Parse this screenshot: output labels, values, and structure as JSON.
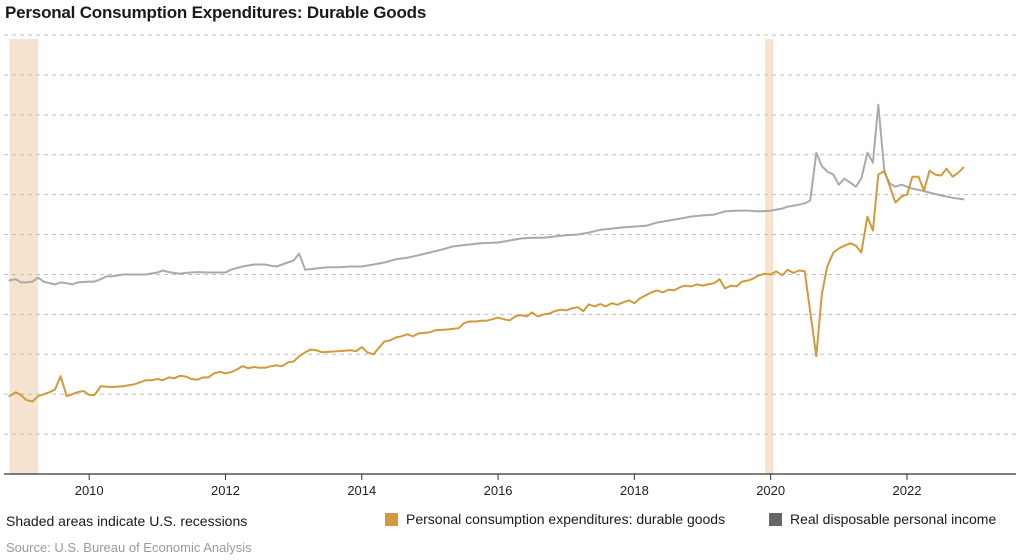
{
  "title": "Personal Consumption Expenditures: Durable Goods",
  "note": "Shaded areas indicate U.S. recessions",
  "source": "Source: U.S. Bureau of Economic Analysis",
  "colors": {
    "pce": "#d29a3c",
    "rdi": "#a9a9b1",
    "rdi_legend": "#666666",
    "recession": "#f5e3cf",
    "grid": "#bfbfbf",
    "axis": "#333333"
  },
  "chart_data": {
    "type": "line",
    "x_unit": "year",
    "xlim": [
      2008.75,
      2023.6
    ],
    "ylim": [
      0,
      11
    ],
    "y_tick_labels_shown": false,
    "grid": "horizontal dashed",
    "legend_position": "bottom",
    "x_ticks": [
      2010,
      2012,
      2014,
      2016,
      2018,
      2020,
      2022
    ],
    "x_tick_labels": [
      "2010",
      "2012",
      "2014",
      "2016",
      "2018",
      "2020",
      "2022"
    ],
    "recessions": [
      [
        2008.83,
        2009.25
      ],
      [
        2019.92,
        2020.04
      ]
    ],
    "series": [
      {
        "key": "pce",
        "name": "Personal consumption expenditures: durable goods",
        "points": [
          [
            2008.83,
            1.95
          ],
          [
            2008.92,
            2.05
          ],
          [
            2009.0,
            1.98
          ],
          [
            2009.08,
            1.85
          ],
          [
            2009.17,
            1.82
          ],
          [
            2009.25,
            1.95
          ],
          [
            2009.42,
            2.05
          ],
          [
            2009.5,
            2.12
          ],
          [
            2009.58,
            2.45
          ],
          [
            2009.67,
            1.95
          ],
          [
            2009.83,
            2.05
          ],
          [
            2009.92,
            2.08
          ],
          [
            2010.0,
            1.98
          ],
          [
            2010.08,
            1.98
          ],
          [
            2010.17,
            2.2
          ],
          [
            2010.33,
            2.18
          ],
          [
            2010.5,
            2.2
          ],
          [
            2010.67,
            2.25
          ],
          [
            2010.75,
            2.3
          ],
          [
            2010.83,
            2.35
          ],
          [
            2010.92,
            2.35
          ],
          [
            2011.0,
            2.38
          ],
          [
            2011.08,
            2.35
          ],
          [
            2011.17,
            2.42
          ],
          [
            2011.25,
            2.4
          ],
          [
            2011.33,
            2.46
          ],
          [
            2011.42,
            2.44
          ],
          [
            2011.5,
            2.38
          ],
          [
            2011.58,
            2.36
          ],
          [
            2011.67,
            2.42
          ],
          [
            2011.75,
            2.42
          ],
          [
            2011.83,
            2.52
          ],
          [
            2011.92,
            2.56
          ],
          [
            2012.0,
            2.52
          ],
          [
            2012.08,
            2.55
          ],
          [
            2012.17,
            2.62
          ],
          [
            2012.25,
            2.7
          ],
          [
            2012.33,
            2.65
          ],
          [
            2012.42,
            2.68
          ],
          [
            2012.5,
            2.66
          ],
          [
            2012.58,
            2.66
          ],
          [
            2012.67,
            2.7
          ],
          [
            2012.75,
            2.72
          ],
          [
            2012.83,
            2.7
          ],
          [
            2012.92,
            2.8
          ],
          [
            2013.0,
            2.82
          ],
          [
            2013.08,
            2.95
          ],
          [
            2013.17,
            3.05
          ],
          [
            2013.25,
            3.12
          ],
          [
            2013.33,
            3.1
          ],
          [
            2013.42,
            3.05
          ],
          [
            2013.5,
            3.06
          ],
          [
            2013.67,
            3.08
          ],
          [
            2013.83,
            3.1
          ],
          [
            2013.92,
            3.08
          ],
          [
            2014.0,
            3.18
          ],
          [
            2014.08,
            3.05
          ],
          [
            2014.17,
            3.0
          ],
          [
            2014.25,
            3.16
          ],
          [
            2014.33,
            3.32
          ],
          [
            2014.42,
            3.35
          ],
          [
            2014.5,
            3.42
          ],
          [
            2014.58,
            3.45
          ],
          [
            2014.67,
            3.5
          ],
          [
            2014.75,
            3.45
          ],
          [
            2014.83,
            3.52
          ],
          [
            2015.0,
            3.55
          ],
          [
            2015.08,
            3.6
          ],
          [
            2015.25,
            3.62
          ],
          [
            2015.42,
            3.65
          ],
          [
            2015.5,
            3.78
          ],
          [
            2015.58,
            3.82
          ],
          [
            2015.67,
            3.82
          ],
          [
            2015.75,
            3.84
          ],
          [
            2015.83,
            3.84
          ],
          [
            2015.92,
            3.88
          ],
          [
            2016.0,
            3.92
          ],
          [
            2016.08,
            3.88
          ],
          [
            2016.17,
            3.85
          ],
          [
            2016.25,
            3.95
          ],
          [
            2016.33,
            3.98
          ],
          [
            2016.42,
            3.95
          ],
          [
            2016.5,
            4.05
          ],
          [
            2016.58,
            3.95
          ],
          [
            2016.67,
            4.0
          ],
          [
            2016.75,
            4.02
          ],
          [
            2016.83,
            4.08
          ],
          [
            2016.92,
            4.12
          ],
          [
            2017.0,
            4.1
          ],
          [
            2017.08,
            4.15
          ],
          [
            2017.17,
            4.18
          ],
          [
            2017.25,
            4.08
          ],
          [
            2017.33,
            4.25
          ],
          [
            2017.42,
            4.2
          ],
          [
            2017.5,
            4.26
          ],
          [
            2017.58,
            4.2
          ],
          [
            2017.67,
            4.28
          ],
          [
            2017.75,
            4.24
          ],
          [
            2017.83,
            4.3
          ],
          [
            2017.92,
            4.35
          ],
          [
            2018.0,
            4.28
          ],
          [
            2018.08,
            4.4
          ],
          [
            2018.17,
            4.48
          ],
          [
            2018.25,
            4.55
          ],
          [
            2018.33,
            4.6
          ],
          [
            2018.42,
            4.55
          ],
          [
            2018.5,
            4.62
          ],
          [
            2018.58,
            4.6
          ],
          [
            2018.67,
            4.68
          ],
          [
            2018.75,
            4.72
          ],
          [
            2018.83,
            4.7
          ],
          [
            2018.92,
            4.75
          ],
          [
            2019.0,
            4.72
          ],
          [
            2019.08,
            4.75
          ],
          [
            2019.17,
            4.78
          ],
          [
            2019.25,
            4.88
          ],
          [
            2019.33,
            4.65
          ],
          [
            2019.42,
            4.72
          ],
          [
            2019.5,
            4.7
          ],
          [
            2019.58,
            4.82
          ],
          [
            2019.67,
            4.85
          ],
          [
            2019.75,
            4.9
          ],
          [
            2019.83,
            4.98
          ],
          [
            2019.92,
            5.02
          ],
          [
            2020.0,
            5.0
          ],
          [
            2020.08,
            5.08
          ],
          [
            2020.17,
            4.98
          ],
          [
            2020.25,
            5.12
          ],
          [
            2020.33,
            5.04
          ],
          [
            2020.42,
            5.1
          ],
          [
            2020.5,
            5.08
          ],
          [
            2020.67,
            2.95
          ],
          [
            2020.75,
            4.5
          ],
          [
            2020.83,
            5.2
          ],
          [
            2020.92,
            5.55
          ],
          [
            2021.0,
            5.65
          ],
          [
            2021.08,
            5.72
          ],
          [
            2021.17,
            5.78
          ],
          [
            2021.25,
            5.72
          ],
          [
            2021.33,
            5.55
          ],
          [
            2021.42,
            6.45
          ],
          [
            2021.5,
            6.1
          ],
          [
            2021.58,
            7.5
          ],
          [
            2021.67,
            7.6
          ],
          [
            2021.75,
            7.2
          ],
          [
            2021.83,
            6.8
          ],
          [
            2021.92,
            6.95
          ],
          [
            2022.0,
            7.0
          ],
          [
            2022.08,
            7.45
          ],
          [
            2022.17,
            7.45
          ],
          [
            2022.25,
            7.1
          ],
          [
            2022.33,
            7.6
          ],
          [
            2022.42,
            7.5
          ],
          [
            2022.5,
            7.48
          ],
          [
            2022.58,
            7.65
          ],
          [
            2022.67,
            7.45
          ],
          [
            2022.75,
            7.55
          ],
          [
            2022.83,
            7.68
          ]
        ]
      },
      {
        "key": "rdi",
        "name": "Real disposable personal income",
        "points": [
          [
            2008.83,
            4.85
          ],
          [
            2008.92,
            4.88
          ],
          [
            2009.0,
            4.8
          ],
          [
            2009.08,
            4.8
          ],
          [
            2009.17,
            4.82
          ],
          [
            2009.25,
            4.92
          ],
          [
            2009.33,
            4.82
          ],
          [
            2009.42,
            4.78
          ],
          [
            2009.5,
            4.75
          ],
          [
            2009.58,
            4.8
          ],
          [
            2009.67,
            4.78
          ],
          [
            2009.75,
            4.75
          ],
          [
            2009.83,
            4.8
          ],
          [
            2010.0,
            4.82
          ],
          [
            2010.08,
            4.82
          ],
          [
            2010.17,
            4.88
          ],
          [
            2010.25,
            4.95
          ],
          [
            2010.33,
            4.95
          ],
          [
            2010.5,
            5.0
          ],
          [
            2010.67,
            5.0
          ],
          [
            2010.83,
            5.0
          ],
          [
            2011.0,
            5.05
          ],
          [
            2011.08,
            5.1
          ],
          [
            2011.17,
            5.06
          ],
          [
            2011.33,
            5.02
          ],
          [
            2011.42,
            5.04
          ],
          [
            2011.58,
            5.06
          ],
          [
            2011.75,
            5.05
          ],
          [
            2012.0,
            5.05
          ],
          [
            2012.08,
            5.12
          ],
          [
            2012.25,
            5.2
          ],
          [
            2012.42,
            5.25
          ],
          [
            2012.58,
            5.25
          ],
          [
            2012.67,
            5.22
          ],
          [
            2012.75,
            5.2
          ],
          [
            2012.83,
            5.25
          ],
          [
            2013.0,
            5.35
          ],
          [
            2013.08,
            5.52
          ],
          [
            2013.17,
            5.12
          ],
          [
            2013.33,
            5.15
          ],
          [
            2013.5,
            5.18
          ],
          [
            2013.67,
            5.18
          ],
          [
            2013.83,
            5.2
          ],
          [
            2014.0,
            5.2
          ],
          [
            2014.17,
            5.25
          ],
          [
            2014.33,
            5.3
          ],
          [
            2014.5,
            5.38
          ],
          [
            2014.67,
            5.42
          ],
          [
            2014.83,
            5.48
          ],
          [
            2015.0,
            5.55
          ],
          [
            2015.17,
            5.62
          ],
          [
            2015.33,
            5.7
          ],
          [
            2015.42,
            5.72
          ],
          [
            2015.58,
            5.75
          ],
          [
            2015.75,
            5.78
          ],
          [
            2016.0,
            5.8
          ],
          [
            2016.17,
            5.85
          ],
          [
            2016.33,
            5.9
          ],
          [
            2016.5,
            5.92
          ],
          [
            2016.67,
            5.92
          ],
          [
            2016.83,
            5.95
          ],
          [
            2017.0,
            5.98
          ],
          [
            2017.17,
            6.0
          ],
          [
            2017.33,
            6.05
          ],
          [
            2017.5,
            6.12
          ],
          [
            2017.67,
            6.15
          ],
          [
            2017.83,
            6.18
          ],
          [
            2018.0,
            6.2
          ],
          [
            2018.17,
            6.22
          ],
          [
            2018.33,
            6.3
          ],
          [
            2018.5,
            6.35
          ],
          [
            2018.67,
            6.4
          ],
          [
            2018.83,
            6.45
          ],
          [
            2019.0,
            6.48
          ],
          [
            2019.17,
            6.5
          ],
          [
            2019.33,
            6.58
          ],
          [
            2019.5,
            6.6
          ],
          [
            2019.67,
            6.6
          ],
          [
            2019.83,
            6.58
          ],
          [
            2020.0,
            6.6
          ],
          [
            2020.17,
            6.65
          ],
          [
            2020.25,
            6.7
          ],
          [
            2020.33,
            6.72
          ],
          [
            2020.5,
            6.78
          ],
          [
            2020.58,
            6.85
          ],
          [
            2020.67,
            8.05
          ],
          [
            2020.75,
            7.72
          ],
          [
            2020.83,
            7.58
          ],
          [
            2020.92,
            7.5
          ],
          [
            2021.0,
            7.25
          ],
          [
            2021.08,
            7.4
          ],
          [
            2021.17,
            7.3
          ],
          [
            2021.25,
            7.2
          ],
          [
            2021.33,
            7.4
          ],
          [
            2021.42,
            8.05
          ],
          [
            2021.5,
            7.8
          ],
          [
            2021.58,
            9.25
          ],
          [
            2021.67,
            7.55
          ],
          [
            2021.75,
            7.28
          ],
          [
            2021.83,
            7.2
          ],
          [
            2021.92,
            7.25
          ],
          [
            2022.0,
            7.2
          ],
          [
            2022.08,
            7.15
          ],
          [
            2022.17,
            7.12
          ],
          [
            2022.33,
            7.05
          ],
          [
            2022.5,
            6.98
          ],
          [
            2022.67,
            6.92
          ],
          [
            2022.83,
            6.88
          ]
        ]
      }
    ]
  }
}
